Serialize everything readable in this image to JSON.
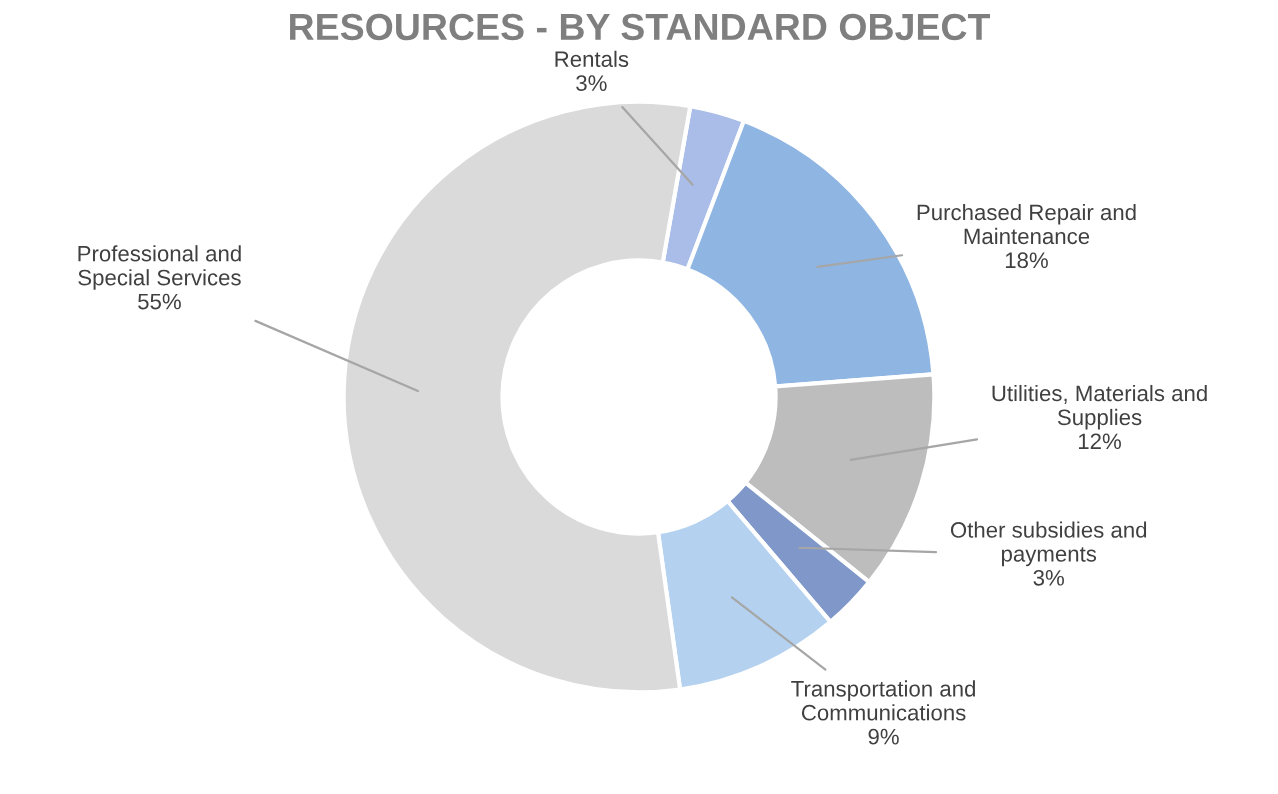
{
  "chart_data": {
    "type": "donut",
    "title": "RESOURCES - BY STANDARD OBJECT",
    "categories": [
      "Rentals",
      "Purchased Repair and Maintenance",
      "Utilities, Materials and Supplies",
      "Other subsidies and payments",
      "Transportation and Communications",
      "Professional and Special Services"
    ],
    "values": [
      3,
      18,
      12,
      3,
      9,
      55
    ],
    "colors": [
      "#a9bde8",
      "#8fb5e3",
      "#bdbdbd",
      "#7f97c9",
      "#b4d2f0",
      "#dadada"
    ],
    "value_labels": [
      "3%",
      "18%",
      "12%",
      "3%",
      "9%",
      "55%"
    ],
    "legend": false
  }
}
